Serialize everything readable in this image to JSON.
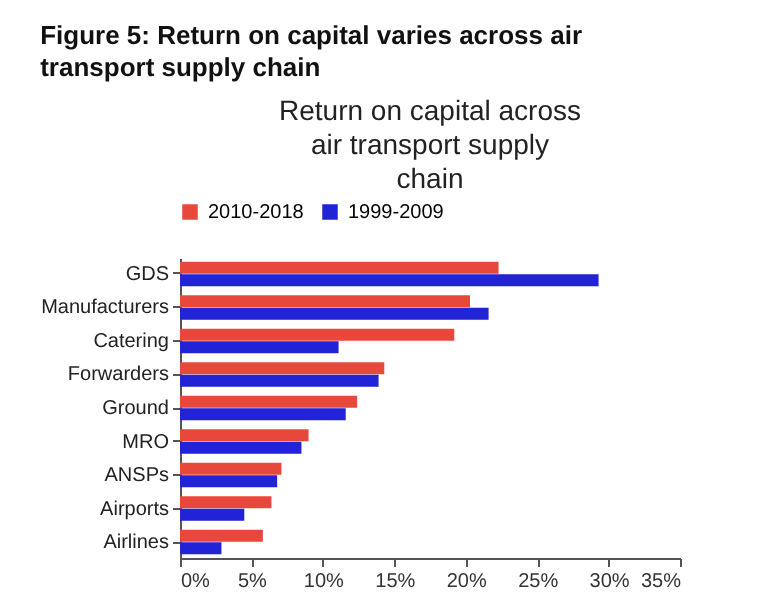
{
  "chart_data": {
    "type": "bar",
    "orientation": "horizontal",
    "title": "Figure 5: Return on capital varies across air transport supply chain",
    "subtitle": "Return on capital across air transport supply chain",
    "categories": [
      "GDS",
      "Manufacturers",
      "Catering",
      "Forwarders",
      "Ground",
      "MRO",
      "ANSPs",
      "Airports",
      "Airlines"
    ],
    "series": [
      {
        "name": "2010-2018",
        "color": "#e8483b",
        "values": [
          22.3,
          20.3,
          19.2,
          14.3,
          12.4,
          9.0,
          7.1,
          6.4,
          5.8
        ]
      },
      {
        "name": "1999-2009",
        "color": "#2222d6",
        "values": [
          29.3,
          21.6,
          11.1,
          13.9,
          11.6,
          8.5,
          6.8,
          4.5,
          2.9
        ]
      }
    ],
    "xlim": [
      0,
      35
    ],
    "xticks": [
      {
        "value": 0,
        "label": "0%"
      },
      {
        "value": 5,
        "label": "5%"
      },
      {
        "value": 10,
        "label": "10%"
      },
      {
        "value": 15,
        "label": "15%"
      },
      {
        "value": 20,
        "label": "20%"
      },
      {
        "value": 25,
        "label": "25%"
      },
      {
        "value": 30,
        "label": "30%"
      },
      {
        "value": 35,
        "label": "35%"
      }
    ],
    "grid": false,
    "legend": "top"
  }
}
